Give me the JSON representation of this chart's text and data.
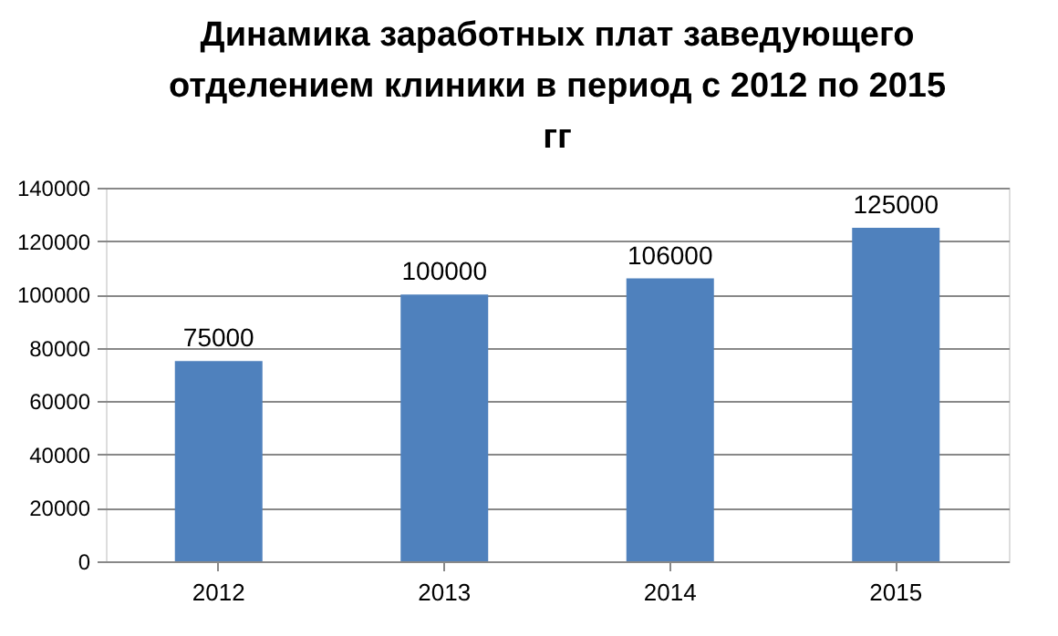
{
  "chart_data": {
    "type": "bar",
    "title": [
      "Динамика заработных плат заведующего",
      "отделением клиники в период с 2012 по 2015",
      "гг"
    ],
    "categories": [
      "2012",
      "2013",
      "2014",
      "2015"
    ],
    "series": [
      {
        "color": "#4f81bd",
        "values": [
          75000,
          100000,
          106000,
          125000
        ]
      }
    ],
    "ylim": [
      0,
      140000
    ],
    "yticks": [
      0,
      20000,
      40000,
      60000,
      80000,
      100000,
      120000,
      140000
    ],
    "grid": "y",
    "legend": false,
    "data_labels": true
  }
}
